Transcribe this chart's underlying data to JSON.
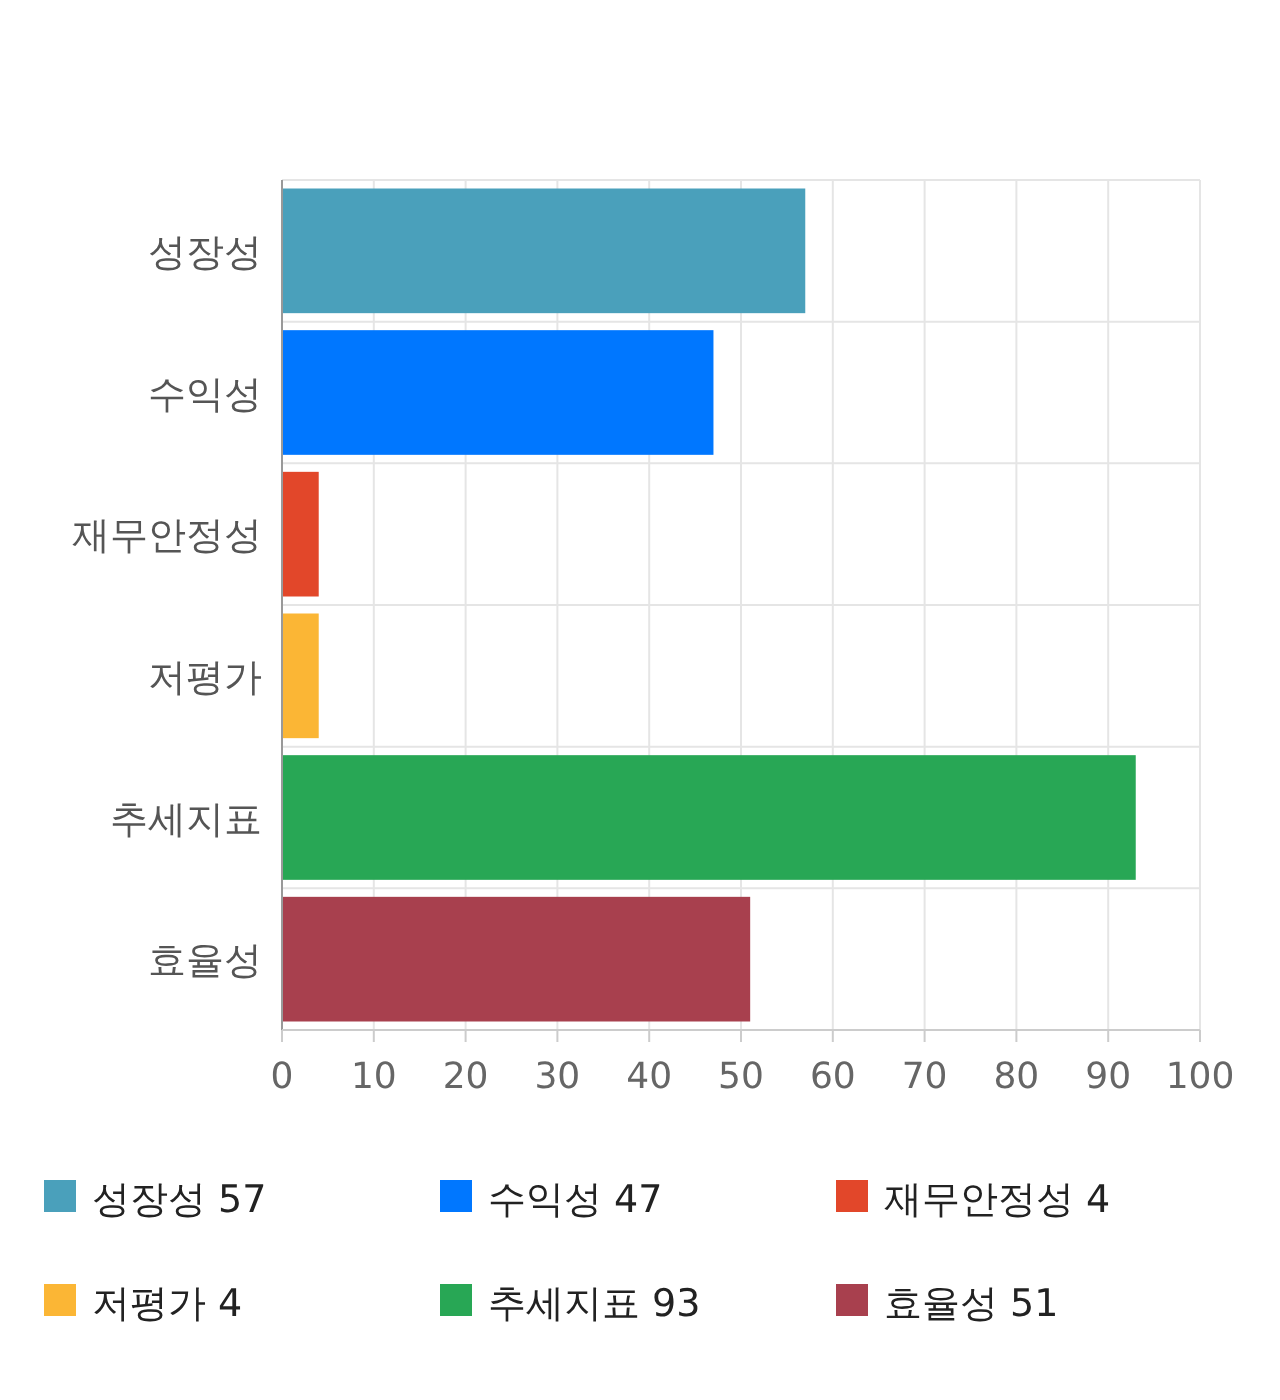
{
  "chart_data": {
    "type": "bar",
    "orientation": "horizontal",
    "categories": [
      "성장성",
      "수익성",
      "재무안정성",
      "저평가",
      "추세지표",
      "효율성"
    ],
    "series": [
      {
        "name": "성장성 57",
        "color": "#4aa0bb",
        "values": [
          57,
          null,
          null,
          null,
          null,
          null
        ]
      },
      {
        "name": "수익성 47",
        "color": "#0077ff",
        "values": [
          null,
          47,
          null,
          null,
          null,
          null
        ]
      },
      {
        "name": "재무안정성 4",
        "color": "#e2472a",
        "values": [
          null,
          null,
          4,
          null,
          null,
          null
        ]
      },
      {
        "name": "저평가 4",
        "color": "#fbb635",
        "values": [
          null,
          null,
          null,
          4,
          null,
          null
        ]
      },
      {
        "name": "추세지표 93",
        "color": "#28a755",
        "values": [
          null,
          null,
          null,
          null,
          93,
          null
        ]
      },
      {
        "name": "효율성 51",
        "color": "#a8404e",
        "values": [
          null,
          null,
          null,
          null,
          null,
          51
        ]
      }
    ],
    "xlim": [
      0,
      100
    ],
    "xticks": [
      0,
      10,
      20,
      30,
      40,
      50,
      60,
      70,
      80,
      90,
      100
    ],
    "grid": true,
    "legend": "bottom"
  }
}
